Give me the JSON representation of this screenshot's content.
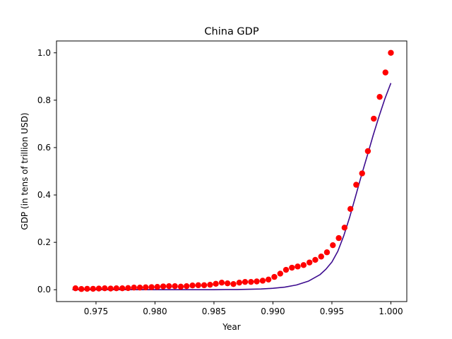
{
  "chart_data": {
    "type": "scatter",
    "title": "China GDP",
    "xlabel": "Year",
    "ylabel": "GDP (in tens of trillion USD)",
    "xlim": [
      0.97165,
      1.00135
    ],
    "ylim": [
      -0.05,
      1.05
    ],
    "xticks": [
      0.975,
      0.98,
      0.985,
      0.99,
      0.995,
      1.0
    ],
    "xtick_labels": [
      "0.975",
      "0.980",
      "0.985",
      "0.990",
      "0.995",
      "1.000"
    ],
    "yticks": [
      0.0,
      0.2,
      0.4,
      0.6,
      0.8,
      1.0
    ],
    "ytick_labels": [
      "0.0",
      "0.2",
      "0.4",
      "0.6",
      "0.8",
      "1.0"
    ],
    "grid": false,
    "series": [
      {
        "kind": "scatter",
        "color": "#ff0000",
        "x": [
          0.97326,
          0.97376,
          0.97425,
          0.97475,
          0.97524,
          0.97574,
          0.97624,
          0.97673,
          0.97723,
          0.97772,
          0.97822,
          0.97872,
          0.97921,
          0.97971,
          0.9802,
          0.9807,
          0.98119,
          0.98169,
          0.98219,
          0.98268,
          0.98318,
          0.98367,
          0.98417,
          0.98467,
          0.98516,
          0.98566,
          0.98615,
          0.98665,
          0.98715,
          0.98764,
          0.98814,
          0.98863,
          0.98913,
          0.98962,
          0.99012,
          0.99062,
          0.99111,
          0.99161,
          0.9921,
          0.9926,
          0.9931,
          0.99359,
          0.99409,
          0.99458,
          0.99508,
          0.99558,
          0.99607,
          0.99657,
          0.99706,
          0.99756,
          0.99805,
          0.99855,
          0.99905,
          0.99954,
          1.0
        ],
        "y": [
          0.006,
          0.003,
          0.004,
          0.004,
          0.005,
          0.006,
          0.005,
          0.006,
          0.006,
          0.007,
          0.009,
          0.009,
          0.01,
          0.011,
          0.012,
          0.014,
          0.015,
          0.015,
          0.013,
          0.015,
          0.018,
          0.019,
          0.019,
          0.021,
          0.025,
          0.03,
          0.027,
          0.024,
          0.03,
          0.033,
          0.033,
          0.035,
          0.038,
          0.043,
          0.054,
          0.068,
          0.084,
          0.093,
          0.098,
          0.104,
          0.115,
          0.126,
          0.14,
          0.158,
          0.188,
          0.218,
          0.262,
          0.341,
          0.443,
          0.491,
          0.585,
          0.722,
          0.814,
          0.917,
          1.0
        ]
      },
      {
        "kind": "line",
        "color": "#3d0c8f",
        "model": "logistic",
        "x": [
          0.973,
          0.975,
          0.977,
          0.979,
          0.981,
          0.983,
          0.985,
          0.986,
          0.987,
          0.988,
          0.989,
          0.99,
          0.991,
          0.992,
          0.993,
          0.994,
          0.9945,
          0.995,
          0.9955,
          0.996,
          0.9965,
          0.997,
          0.9975,
          0.998,
          0.9985,
          0.999,
          0.9995,
          1.0
        ],
        "y": [
          0.0,
          0.0,
          0.0,
          0.0,
          0.0,
          0.0,
          0.0,
          0.001,
          0.001,
          0.002,
          0.003,
          0.006,
          0.011,
          0.02,
          0.036,
          0.064,
          0.087,
          0.117,
          0.162,
          0.227,
          0.305,
          0.393,
          0.482,
          0.566,
          0.652,
          0.732,
          0.807,
          0.872
        ]
      }
    ]
  }
}
